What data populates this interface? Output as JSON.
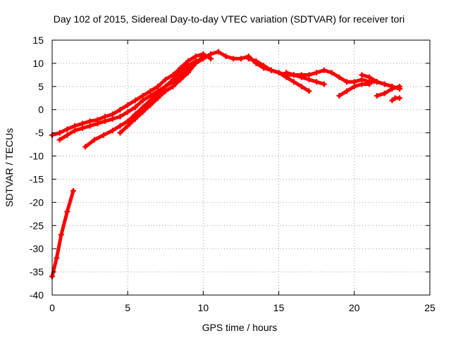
{
  "chart_data": {
    "type": "scatter",
    "title": "Day 102 of 2015, Sidereal Day-to-day VTEC variation (SDTVAR) for receiver tori",
    "xlabel": "GPS time / hours",
    "ylabel": "SDTVAR / TECUs",
    "xlim": [
      0,
      25
    ],
    "ylim": [
      -40,
      15
    ],
    "x_ticks": [
      0,
      5,
      10,
      15,
      20,
      25
    ],
    "y_ticks": [
      -40,
      -35,
      -30,
      -25,
      -20,
      -15,
      -10,
      -5,
      0,
      5,
      10,
      15
    ],
    "grid": true,
    "legend": "none",
    "colors": {
      "series": "#ff0000",
      "grid": "#a0a0a0",
      "frame": "#000000"
    },
    "series": [
      {
        "x": [
          0.0,
          0.3,
          0.6,
          1.0,
          1.4
        ],
        "y": [
          -36,
          -32,
          -27,
          -22,
          -17.5
        ]
      },
      {
        "x": [
          0.0,
          0.5,
          1.0,
          1.5,
          2.0,
          2.5,
          3.0,
          3.5,
          4.0,
          4.5,
          5.0,
          5.5,
          6.0,
          6.5,
          7.0,
          7.5,
          8.0,
          8.5,
          9.0,
          9.5,
          10.0,
          10.5
        ],
        "y": [
          -5.5,
          -5.0,
          -4.2,
          -3.5,
          -3.0,
          -2.5,
          -2.2,
          -1.5,
          -1.0,
          0.0,
          1.0,
          2.0,
          3.0,
          4.0,
          5.0,
          6.5,
          7.5,
          9.0,
          10.5,
          11.5,
          12.0,
          11.0
        ]
      },
      {
        "x": [
          0.5,
          1.0,
          1.5,
          2.0,
          2.5,
          3.0,
          3.5,
          4.0,
          4.5,
          5.0,
          5.5,
          6.0,
          6.5,
          7.0,
          7.5,
          8.0,
          8.5,
          9.0,
          9.5,
          10.0
        ],
        "y": [
          -6.5,
          -5.5,
          -4.5,
          -4.0,
          -3.5,
          -3.0,
          -2.5,
          -2.0,
          -1.5,
          -0.5,
          0.5,
          2.0,
          3.0,
          4.0,
          5.0,
          6.0,
          7.0,
          8.5,
          10.0,
          11.0
        ]
      },
      {
        "x": [
          2.2,
          2.8,
          3.4,
          4.0,
          4.5,
          5.0,
          5.5,
          6.0,
          6.5,
          7.0,
          7.5,
          8.0,
          8.5,
          9.0,
          9.5,
          10.0,
          10.5,
          11.0,
          11.5,
          12.0,
          12.5,
          13.0,
          13.5,
          14.0,
          14.5,
          15.0,
          15.5,
          16.0,
          16.5,
          17.0,
          17.5,
          18.0,
          18.5,
          19.0,
          19.5,
          20.0,
          20.5,
          21.0,
          21.5,
          22.0,
          22.5,
          23.0
        ],
        "y": [
          -8.0,
          -6.5,
          -5.5,
          -4.5,
          -3.5,
          -2.5,
          -1.0,
          0.5,
          2.0,
          3.5,
          5.0,
          6.5,
          8.0,
          9.5,
          10.5,
          11.0,
          12.0,
          12.5,
          11.5,
          11.0,
          11.0,
          11.5,
          10.0,
          9.0,
          8.5,
          8.0,
          7.5,
          7.5,
          7.5,
          7.5,
          8.0,
          8.5,
          8.0,
          7.0,
          6.0,
          6.0,
          6.5,
          6.0,
          6.0,
          5.5,
          5.0,
          4.5
        ]
      },
      {
        "x": [
          4.5,
          5.0,
          5.5,
          6.0,
          6.5,
          7.0,
          7.5,
          8.0,
          8.5,
          9.0,
          9.5,
          10.0
        ],
        "y": [
          -5.0,
          -3.5,
          -2.0,
          -0.5,
          1.0,
          2.5,
          4.0,
          5.0,
          6.5,
          8.0,
          10.0,
          11.5
        ]
      },
      {
        "x": [
          13.0,
          13.5,
          14.0,
          14.5,
          15.0,
          15.5,
          16.0,
          16.5,
          17.0
        ],
        "y": [
          11.0,
          10.5,
          9.5,
          8.5,
          8.0,
          7.0,
          6.0,
          5.0,
          4.0
        ]
      },
      {
        "x": [
          15.5,
          16.0,
          16.5,
          17.0,
          17.5,
          18.0
        ],
        "y": [
          8.0,
          7.5,
          7.0,
          6.5,
          6.0,
          5.5
        ]
      },
      {
        "x": [
          19.0,
          19.5,
          20.0,
          20.5,
          21.0
        ],
        "y": [
          3.0,
          4.0,
          5.0,
          5.5,
          5.5
        ]
      },
      {
        "x": [
          20.5,
          21.0,
          21.5,
          22.0,
          22.5,
          23.0
        ],
        "y": [
          7.5,
          7.0,
          6.0,
          5.5,
          5.0,
          4.5
        ]
      },
      {
        "x": [
          21.5,
          22.0,
          22.5,
          23.0
        ],
        "y": [
          3.0,
          3.5,
          4.5,
          5.0
        ]
      },
      {
        "x": [
          22.5,
          22.7,
          23.0
        ],
        "y": [
          2.0,
          2.5,
          2.5
        ]
      }
    ]
  }
}
